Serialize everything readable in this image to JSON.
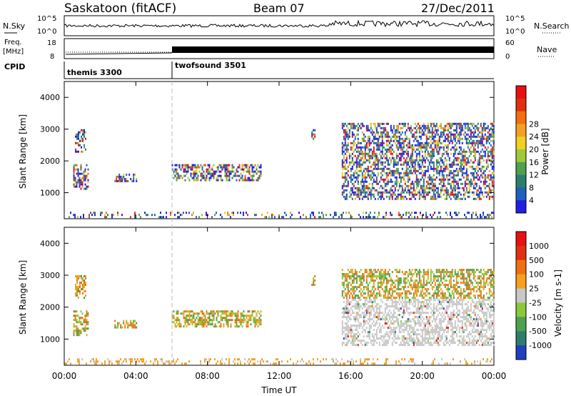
{
  "header": {
    "station": "Saskatoon (fitACF)",
    "beam": "Beam 07",
    "date": "27/Dec/2011"
  },
  "top_panel": {
    "left_label": "N.Sky",
    "right_label": "N.Search",
    "tick_top": "10^5",
    "tick_bottom": "10^0"
  },
  "freq_panel": {
    "left_label_1": "Freq.",
    "left_label_2": "[MHz]",
    "left_tick_top": "18",
    "left_tick_bottom": "8",
    "right_label": "Nave",
    "right_tick_top": "60",
    "right_tick_bottom": "0"
  },
  "cpid_panel": {
    "label": "CPID",
    "modes": [
      "themis 3300",
      "twofsound 3501"
    ]
  },
  "chart_data": [
    {
      "type": "heatmap",
      "name": "power",
      "ylabel": "Slant Range [km]",
      "yticks": [
        "1000",
        "2000",
        "3000",
        "4000"
      ],
      "ylim": [
        180,
        4500
      ],
      "colorbar": {
        "label": "Power [dB]",
        "ticks": [
          "4",
          "8",
          "12",
          "16",
          "20",
          "24",
          "28"
        ],
        "colors": [
          "#1f1fe6",
          "#1f5fbf",
          "#2e7d6b",
          "#4fa04f",
          "#a0c83a",
          "#f0d020",
          "#f5a020",
          "#f07010",
          "#e03010",
          "#e81010"
        ]
      },
      "patches": [
        {
          "t0": 0.5,
          "t1": 1.3,
          "r0": 1100,
          "r1": 1900,
          "level": "mixed"
        },
        {
          "t0": 0.6,
          "t1": 1.2,
          "r0": 2300,
          "r1": 3000,
          "level": "mixed"
        },
        {
          "t0": 2.8,
          "t1": 4.0,
          "r0": 1350,
          "r1": 1600,
          "level": "mixed"
        },
        {
          "t0": 6.0,
          "t1": 11.0,
          "r0": 1400,
          "r1": 1900,
          "level": "mixed"
        },
        {
          "t0": 13.8,
          "t1": 14.0,
          "r0": 2700,
          "r1": 3000,
          "level": "mixed"
        },
        {
          "t0": 15.5,
          "t1": 24.0,
          "r0": 800,
          "r1": 3200,
          "level": "mixed"
        },
        {
          "t0": 0.0,
          "t1": 24.0,
          "r0": 200,
          "r1": 400,
          "level": "sparse"
        }
      ]
    },
    {
      "type": "heatmap",
      "name": "velocity",
      "ylabel": "Slant Range [km]",
      "yticks": [
        "1000",
        "2000",
        "3000",
        "4000"
      ],
      "ylim": [
        180,
        4500
      ],
      "colorbar": {
        "label": "Velocity [m s-1]",
        "ticks": [
          "1000",
          "500",
          "100",
          "25",
          "-25",
          "-100",
          "-500",
          "-1000"
        ],
        "colors": [
          "#1f3fbf",
          "#2e7d6b",
          "#4fa04f",
          "#8cc83a",
          "#c8c8c8",
          "#f5a020",
          "#f07010",
          "#e03010",
          "#e81010"
        ]
      },
      "xlabel": "Time UT",
      "xticks": [
        "00:00",
        "04:00",
        "08:00",
        "12:00",
        "16:00",
        "20:00",
        "00:00"
      ],
      "xlim": [
        0,
        24
      ]
    }
  ]
}
